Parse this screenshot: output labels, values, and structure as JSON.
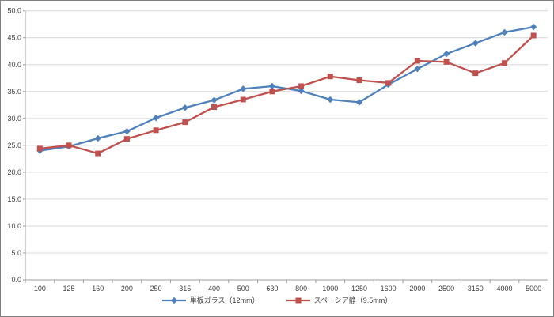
{
  "chart_data": {
    "type": "line",
    "title": "",
    "xlabel": "",
    "ylabel": "",
    "categories": [
      100,
      125,
      160,
      200,
      250,
      315,
      400,
      500,
      630,
      800,
      1000,
      1250,
      1600,
      2000,
      2500,
      3150,
      4000,
      5000
    ],
    "x_tick_labels": [
      "100",
      "125",
      "160",
      "200",
      "250",
      "315",
      "400",
      "500",
      "630",
      "800",
      "1000",
      "1250",
      "1600",
      "2000",
      "2500",
      "3150",
      "4000",
      "5000"
    ],
    "y_tick_labels": [
      "0.0",
      "5.0",
      "10.0",
      "15.0",
      "20.0",
      "25.0",
      "30.0",
      "35.0",
      "40.0",
      "45.0",
      "50.0"
    ],
    "ylim": [
      0,
      50
    ],
    "ytick_step": 5,
    "grid": true,
    "legend_position": "bottom",
    "series": [
      {
        "name": "単板ガラス（12mm）",
        "color": "#4f81bd",
        "marker": "diamond",
        "values": [
          24.0,
          24.8,
          26.3,
          27.6,
          30.1,
          32.0,
          33.4,
          35.5,
          36.0,
          35.1,
          33.5,
          33.0,
          36.3,
          39.2,
          42.0,
          44.0,
          46.0,
          47.0
        ]
      },
      {
        "name": "スペーシア静（9.5mm）",
        "color": "#c0504d",
        "marker": "square",
        "values": [
          24.4,
          25.0,
          23.5,
          26.2,
          27.8,
          29.3,
          32.1,
          33.5,
          35.0,
          36.0,
          37.8,
          37.1,
          36.6,
          40.7,
          40.5,
          38.4,
          40.3,
          45.4
        ]
      }
    ],
    "colors": {
      "background": "#ffffff",
      "border": "#7f7f7f",
      "gridline": "#d7d7d7",
      "axis_line": "#9c9c9c",
      "tick_text": "#404040"
    }
  }
}
